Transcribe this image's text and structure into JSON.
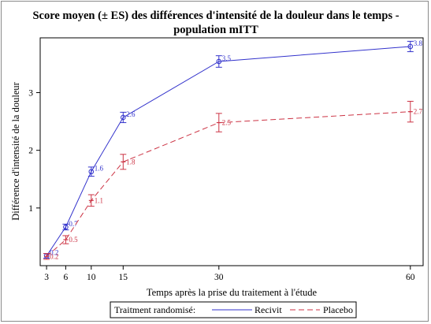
{
  "chart_data": {
    "type": "line",
    "title_line1": "Score moyen (± ES) des différences d'intensité de la douleur dans le temps -",
    "title_line2": "population mITT",
    "xlabel": "Temps après la prise du traitement à l'étude",
    "ylabel": "Différence d'intensité de la douleur",
    "xlim": [
      2,
      62
    ],
    "ylim": [
      0,
      3.95
    ],
    "xticks": [
      3,
      6,
      10,
      15,
      30,
      60
    ],
    "yticks": [
      1,
      2,
      3
    ],
    "grid": false,
    "legend_title": "Traitment randomisé:",
    "legend_position": "bottom",
    "series": [
      {
        "name": "Recivit",
        "color": "#3333cc",
        "line_style": "solid",
        "marker": "circle",
        "x": [
          3,
          6,
          10,
          15,
          30,
          60
        ],
        "y": [
          0.17,
          0.67,
          1.63,
          2.57,
          3.54,
          3.8
        ],
        "error": [
          0.04,
          0.05,
          0.08,
          0.09,
          0.1,
          0.09
        ],
        "labels": [
          "0.2",
          "0.7",
          "1.6",
          "2.6",
          "3.5",
          "3.8"
        ]
      },
      {
        "name": "Placebo",
        "color": "#cc3344",
        "line_style": "dashed",
        "marker": "dash",
        "x": [
          3,
          6,
          10,
          15,
          30,
          60
        ],
        "y": [
          0.16,
          0.45,
          1.13,
          1.8,
          2.48,
          2.67
        ],
        "error": [
          0.05,
          0.07,
          0.1,
          0.13,
          0.16,
          0.18
        ],
        "labels": [
          "0.2",
          "0.5",
          "1.1",
          "1.8",
          "2.5",
          "2.7"
        ]
      }
    ]
  }
}
